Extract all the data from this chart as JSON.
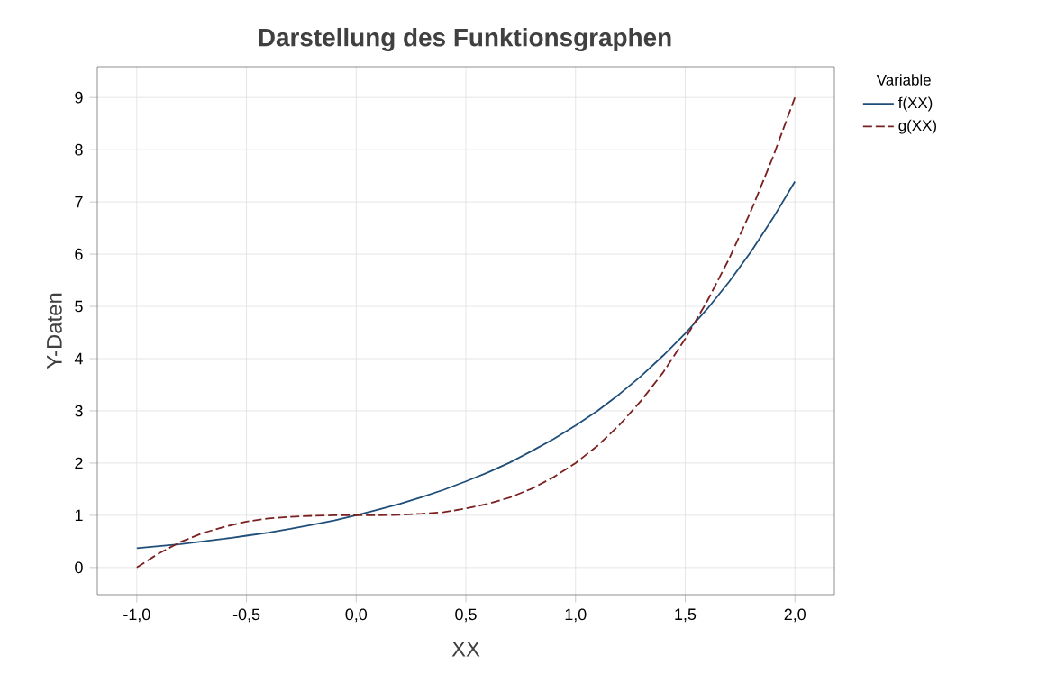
{
  "chart_data": {
    "type": "line",
    "title": "Darstellung des Funktionsgraphen",
    "xlabel": "XX",
    "ylabel": "Y-Daten",
    "legend_title": "Variable",
    "legend": "top right",
    "grid": true,
    "marker": "none",
    "xlim": [
      -1.18,
      2.18
    ],
    "ylim": [
      -0.52,
      9.59
    ],
    "xticks": [
      {
        "value": -1,
        "label": "-1,0"
      },
      {
        "value": -0.5,
        "label": "-0,5"
      },
      {
        "value": 0,
        "label": "0,0"
      },
      {
        "value": 0.5,
        "label": "0,5"
      },
      {
        "value": 1,
        "label": "1,0"
      },
      {
        "value": 1.5,
        "label": "1,5"
      },
      {
        "value": 2,
        "label": "2,0"
      }
    ],
    "yticks": [
      0,
      1,
      2,
      3,
      4,
      5,
      6,
      7,
      8,
      9
    ],
    "x": [
      -1,
      -0.9,
      -0.8,
      -0.7,
      -0.6,
      -0.5,
      -0.4,
      -0.3,
      -0.2,
      -0.1,
      0,
      0.1,
      0.2,
      0.3,
      0.4,
      0.5,
      0.6,
      0.7,
      0.8,
      0.9,
      1,
      1.1,
      1.2,
      1.3,
      1.4,
      1.5,
      1.6,
      1.7,
      1.8,
      1.9,
      2
    ],
    "series": [
      {
        "name": "f(XX)",
        "color": "#1f4e79",
        "line_style": "solid",
        "values": [
          0.37,
          0.41,
          0.45,
          0.5,
          0.55,
          0.61,
          0.67,
          0.74,
          0.82,
          0.9,
          1,
          1.11,
          1.22,
          1.35,
          1.49,
          1.65,
          1.82,
          2.01,
          2.23,
          2.46,
          2.72,
          3.0,
          3.32,
          3.67,
          4.06,
          4.48,
          4.95,
          5.47,
          6.05,
          6.69,
          7.39
        ]
      },
      {
        "name": "g(XX)",
        "color": "#7b2020",
        "line_style": "dashed",
        "values": [
          0,
          0.27,
          0.49,
          0.66,
          0.78,
          0.88,
          0.94,
          0.97,
          0.99,
          1.0,
          1,
          1.0,
          1.01,
          1.03,
          1.06,
          1.13,
          1.22,
          1.34,
          1.51,
          1.73,
          2,
          2.33,
          2.73,
          3.2,
          3.74,
          4.38,
          5.1,
          5.91,
          6.83,
          7.86,
          9
        ]
      }
    ]
  }
}
